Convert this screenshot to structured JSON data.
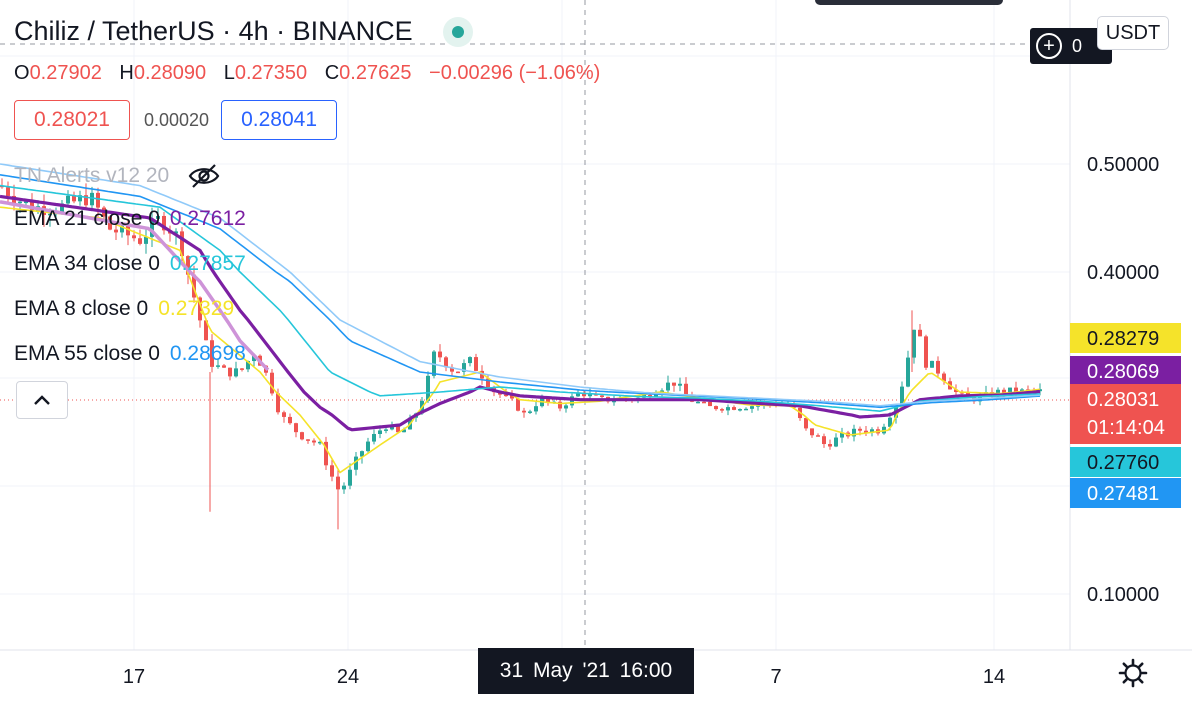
{
  "symbol": {
    "title": "Chiliz / TetherUS · 4h · BINANCE"
  },
  "ohlc": {
    "o_label": "O",
    "o": "0.27902",
    "h_label": "H",
    "h": "0.28090",
    "l_label": "L",
    "l": "0.27350",
    "c_label": "C",
    "c": "0.27625",
    "change": "−0.00296 (−1.06%)"
  },
  "trade": {
    "sell": "0.28021",
    "spread": "0.00020",
    "buy": "0.28041"
  },
  "indicators": {
    "tn_label": "TN Alerts v12 20",
    "ema21_label": "EMA 21 close 0",
    "ema21_value": "0.27612",
    "ema34_label": "EMA 34 close 0",
    "ema34_value": "0.27857",
    "ema8_label": "EMA 8 close 0",
    "ema8_value": "0.27329",
    "ema55_label": "EMA 55 close 0",
    "ema55_value": "0.28698"
  },
  "currency": "USDT",
  "crosshair": {
    "price_text": "0",
    "time_label": "31 May '21   16:00"
  },
  "colors": {
    "up": "#26a69a",
    "down": "#ef5350",
    "ema8": "#f5e32a",
    "ema21": "#7b1fa2",
    "ema34": "#26c6da",
    "ema55": "#2196f3",
    "ema_aux_light": "#90caf9",
    "ema_aux_soft": "#ce93d8"
  },
  "chart_data": {
    "type": "candlestick",
    "y_scale": "log",
    "y_ticks": [
      "0.50000",
      "0.40000",
      "0.10000"
    ],
    "x_ticks": [
      "17",
      "24",
      "7",
      "14"
    ],
    "price_labels": [
      {
        "label": "0.28279",
        "series": "ema8",
        "value": 0.28279,
        "color": "#f5e32a",
        "text_color": "#131722"
      },
      {
        "label": "0.28069",
        "series": "ema21",
        "value": 0.28069,
        "color": "#7b1fa2",
        "text_color": "#ffffff"
      },
      {
        "label": "0.28031",
        "sub": "01:14:04",
        "series": "last",
        "value": 0.28031,
        "color": "#ef5350",
        "text_color": "#ffffff"
      },
      {
        "label": "0.27760",
        "series": "ema34",
        "value": 0.2776,
        "color": "#26c6da",
        "text_color": "#131722"
      },
      {
        "label": "0.27481",
        "series": "ema55",
        "value": 0.27481,
        "color": "#2196f3",
        "text_color": "#ffffff"
      }
    ],
    "close_anchors": [
      [
        0,
        0.48
      ],
      [
        30,
        0.46
      ],
      [
        60,
        0.46
      ],
      [
        90,
        0.47
      ],
      [
        110,
        0.44
      ],
      [
        140,
        0.43
      ],
      [
        160,
        0.45
      ],
      [
        180,
        0.43
      ],
      [
        200,
        0.35
      ],
      [
        210,
        0.31
      ],
      [
        225,
        0.3
      ],
      [
        240,
        0.3
      ],
      [
        255,
        0.32
      ],
      [
        270,
        0.29
      ],
      [
        280,
        0.25
      ],
      [
        300,
        0.23
      ],
      [
        320,
        0.22
      ],
      [
        330,
        0.2
      ],
      [
        340,
        0.185
      ],
      [
        350,
        0.2
      ],
      [
        365,
        0.22
      ],
      [
        385,
        0.24
      ],
      [
        400,
        0.23
      ],
      [
        415,
        0.25
      ],
      [
        425,
        0.28
      ],
      [
        435,
        0.32
      ],
      [
        445,
        0.31
      ],
      [
        455,
        0.3
      ],
      [
        470,
        0.31
      ],
      [
        480,
        0.3
      ],
      [
        495,
        0.28
      ],
      [
        510,
        0.27
      ],
      [
        525,
        0.25
      ],
      [
        540,
        0.27
      ],
      [
        560,
        0.26
      ],
      [
        580,
        0.28
      ],
      [
        600,
        0.27
      ],
      [
        620,
        0.27
      ],
      [
        640,
        0.272
      ],
      [
        660,
        0.285
      ],
      [
        675,
        0.29
      ],
      [
        690,
        0.27
      ],
      [
        710,
        0.26
      ],
      [
        730,
        0.26
      ],
      [
        750,
        0.262
      ],
      [
        770,
        0.265
      ],
      [
        790,
        0.265
      ],
      [
        805,
        0.235
      ],
      [
        815,
        0.23
      ],
      [
        825,
        0.22
      ],
      [
        840,
        0.228
      ],
      [
        860,
        0.235
      ],
      [
        880,
        0.235
      ],
      [
        895,
        0.26
      ],
      [
        905,
        0.3
      ],
      [
        915,
        0.35
      ],
      [
        925,
        0.31
      ],
      [
        940,
        0.3
      ],
      [
        955,
        0.28
      ],
      [
        970,
        0.27
      ],
      [
        985,
        0.275
      ],
      [
        1000,
        0.28
      ],
      [
        1020,
        0.28
      ],
      [
        1041,
        0.28031
      ]
    ],
    "ema_series": [
      {
        "name": "EMA 8",
        "color": "#f5e32a",
        "anchors": [
          [
            0,
            0.46
          ],
          [
            100,
            0.45
          ],
          [
            180,
            0.42
          ],
          [
            210,
            0.34
          ],
          [
            260,
            0.3
          ],
          [
            300,
            0.25
          ],
          [
            340,
            0.2
          ],
          [
            380,
            0.22
          ],
          [
            410,
            0.24
          ],
          [
            440,
            0.29
          ],
          [
            480,
            0.3
          ],
          [
            520,
            0.27
          ],
          [
            560,
            0.265
          ],
          [
            600,
            0.268
          ],
          [
            660,
            0.28
          ],
          [
            700,
            0.272
          ],
          [
            750,
            0.263
          ],
          [
            790,
            0.262
          ],
          [
            815,
            0.24
          ],
          [
            850,
            0.23
          ],
          [
            890,
            0.235
          ],
          [
            910,
            0.28
          ],
          [
            930,
            0.3
          ],
          [
            960,
            0.28
          ],
          [
            1000,
            0.278
          ],
          [
            1041,
            0.28279
          ]
        ]
      },
      {
        "name": "EMA 21",
        "color": "#7b1fa2",
        "anchors": [
          [
            0,
            0.47
          ],
          [
            150,
            0.45
          ],
          [
            200,
            0.42
          ],
          [
            240,
            0.36
          ],
          [
            280,
            0.31
          ],
          [
            320,
            0.26
          ],
          [
            350,
            0.235
          ],
          [
            400,
            0.24
          ],
          [
            440,
            0.265
          ],
          [
            480,
            0.285
          ],
          [
            520,
            0.275
          ],
          [
            580,
            0.27
          ],
          [
            640,
            0.27
          ],
          [
            700,
            0.27
          ],
          [
            760,
            0.265
          ],
          [
            800,
            0.262
          ],
          [
            860,
            0.248
          ],
          [
            890,
            0.25
          ],
          [
            920,
            0.27
          ],
          [
            960,
            0.275
          ],
          [
            1000,
            0.276
          ],
          [
            1041,
            0.28069
          ]
        ]
      },
      {
        "name": "EMA 34",
        "color": "#26c6da",
        "anchors": [
          [
            0,
            0.48
          ],
          [
            160,
            0.46
          ],
          [
            220,
            0.42
          ],
          [
            280,
            0.36
          ],
          [
            330,
            0.3
          ],
          [
            380,
            0.275
          ],
          [
            440,
            0.28
          ],
          [
            500,
            0.285
          ],
          [
            560,
            0.28
          ],
          [
            640,
            0.274
          ],
          [
            700,
            0.272
          ],
          [
            760,
            0.268
          ],
          [
            820,
            0.262
          ],
          [
            880,
            0.255
          ],
          [
            920,
            0.268
          ],
          [
            980,
            0.274
          ],
          [
            1041,
            0.2776
          ]
        ]
      },
      {
        "name": "EMA 55",
        "color": "#2196f3",
        "anchors": [
          [
            0,
            0.49
          ],
          [
            140,
            0.47
          ],
          [
            220,
            0.44
          ],
          [
            290,
            0.39
          ],
          [
            350,
            0.33
          ],
          [
            420,
            0.3
          ],
          [
            500,
            0.29
          ],
          [
            580,
            0.282
          ],
          [
            660,
            0.277
          ],
          [
            740,
            0.272
          ],
          [
            820,
            0.266
          ],
          [
            880,
            0.26
          ],
          [
            930,
            0.266
          ],
          [
            990,
            0.27
          ],
          [
            1041,
            0.27481
          ]
        ]
      },
      {
        "name": "EMA aux",
        "color": "#90caf9",
        "anchors": [
          [
            0,
            0.5
          ],
          [
            140,
            0.48
          ],
          [
            220,
            0.45
          ],
          [
            290,
            0.4
          ],
          [
            340,
            0.35
          ],
          [
            420,
            0.31
          ],
          [
            500,
            0.295
          ],
          [
            580,
            0.285
          ],
          [
            660,
            0.278
          ],
          [
            740,
            0.273
          ],
          [
            820,
            0.268
          ],
          [
            880,
            0.262
          ],
          [
            930,
            0.268
          ],
          [
            990,
            0.272
          ],
          [
            1041,
            0.276
          ]
        ]
      },
      {
        "name": "EMA soft",
        "color": "#ce93d8",
        "anchors": [
          [
            0,
            0.465
          ],
          [
            150,
            0.44
          ],
          [
            200,
            0.39
          ],
          [
            240,
            0.33
          ],
          [
            270,
            0.3
          ]
        ]
      }
    ]
  }
}
